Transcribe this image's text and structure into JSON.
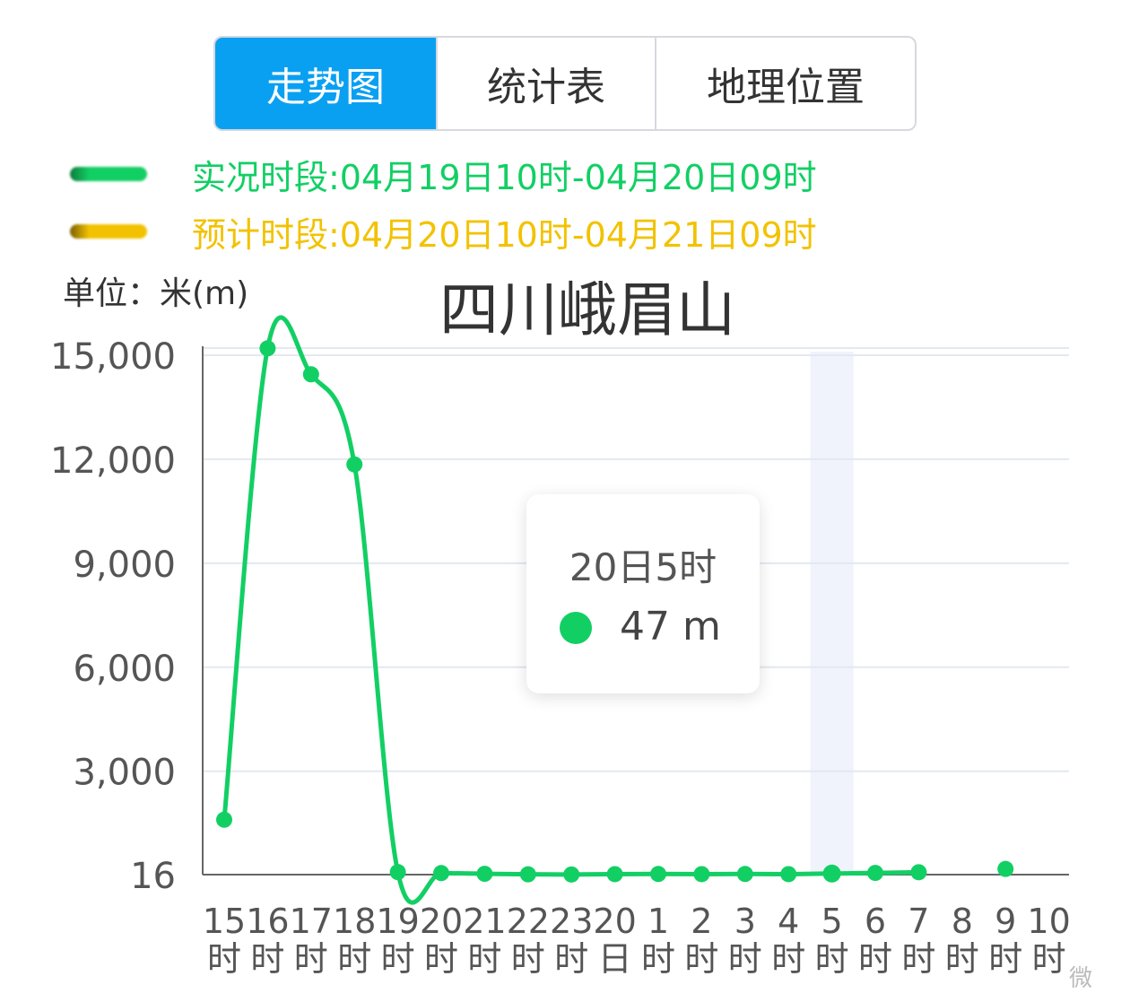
{
  "tabs": [
    {
      "label": "走势图",
      "active": true
    },
    {
      "label": "统计表",
      "active": false
    },
    {
      "label": "地理位置",
      "active": false
    }
  ],
  "legend": {
    "actual": {
      "text": "实况时段:04月19日10时-04月20日09时",
      "color": "#12cf64"
    },
    "forecast": {
      "text": "预计时段:04月20日10时-04月21日09时",
      "color": "#f2c200"
    }
  },
  "unit_label": "单位：米(m)",
  "title": "四川峨眉山",
  "tooltip": {
    "title": "20日5时",
    "value": "47 m"
  },
  "watermark": "微",
  "chart_data": {
    "type": "line",
    "title": "四川峨眉山",
    "ylabel": "单位：米(m)",
    "categories": [
      [
        "15",
        "时"
      ],
      [
        "16",
        "时"
      ],
      [
        "17",
        "时"
      ],
      [
        "18",
        "时"
      ],
      [
        "19",
        "时"
      ],
      [
        "20",
        "时"
      ],
      [
        "21",
        "时"
      ],
      [
        "22",
        "时"
      ],
      [
        "23",
        "时"
      ],
      [
        "20",
        "日"
      ],
      [
        "1",
        "时"
      ],
      [
        "2",
        "时"
      ],
      [
        "3",
        "时"
      ],
      [
        "4",
        "时"
      ],
      [
        "5",
        "时"
      ],
      [
        "6",
        "时"
      ],
      [
        "7",
        "时"
      ],
      [
        "8",
        "时"
      ],
      [
        "9",
        "时"
      ],
      [
        "10",
        "时"
      ]
    ],
    "y_ticks": [
      {
        "value": 16,
        "label": "16"
      },
      {
        "value": 3000,
        "label": "3,000"
      },
      {
        "value": 6000,
        "label": "6,000"
      },
      {
        "value": 9000,
        "label": "9,000"
      },
      {
        "value": 12000,
        "label": "12,000"
      },
      {
        "value": 15000,
        "label": "15,000"
      }
    ],
    "ylim": [
      16,
      15000
    ],
    "grid": true,
    "highlight_index": 14,
    "series": [
      {
        "color": "#12cf64",
        "values": [
          1600,
          15200,
          14450,
          11850,
          90,
          60,
          40,
          25,
          20,
          30,
          35,
          30,
          35,
          30,
          47,
          65,
          85,
          null,
          null,
          null
        ]
      },
      {
        "color": "#12cf64",
        "values": [
          null,
          null,
          null,
          null,
          null,
          null,
          null,
          null,
          null,
          null,
          null,
          null,
          null,
          null,
          null,
          null,
          null,
          null,
          180,
          null
        ]
      }
    ]
  }
}
